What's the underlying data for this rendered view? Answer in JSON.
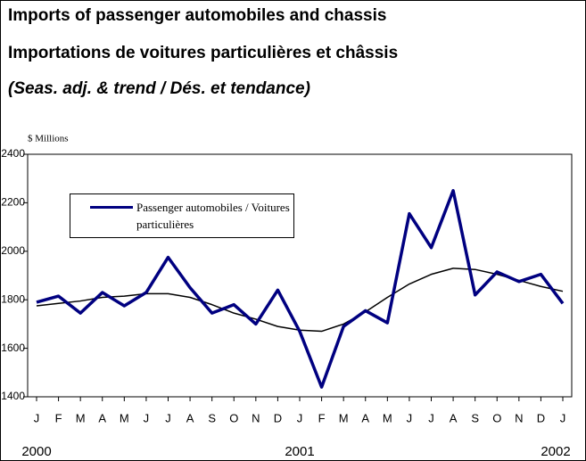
{
  "chart_data": {
    "type": "line",
    "title": "Imports of passenger automobiles and chassis",
    "subtitle": "Importations de voitures particulières et châssis",
    "note": "(Seas. adj. & trend / Dés. et tendance)",
    "y_label": "$ Millions",
    "categories": [
      "J",
      "F",
      "M",
      "A",
      "M",
      "J",
      "J",
      "A",
      "S",
      "O",
      "N",
      "D",
      "J",
      "F",
      "M",
      "A",
      "M",
      "J",
      "J",
      "A",
      "S",
      "O",
      "N",
      "D",
      "J"
    ],
    "years": [
      "2000",
      "2001",
      "2002"
    ],
    "series": [
      {
        "name": "Passenger automobiles / Voitures particulières",
        "color": "#000080",
        "width": 3.5,
        "values": [
          1790,
          1815,
          1745,
          1830,
          1775,
          1830,
          1975,
          1850,
          1745,
          1780,
          1700,
          1840,
          1670,
          1440,
          1690,
          1755,
          1705,
          2155,
          2015,
          2250,
          1820,
          1915,
          1875,
          1905,
          1785
        ]
      },
      {
        "color": "#000000",
        "width": 1.5,
        "values": [
          1775,
          1785,
          1795,
          1810,
          1815,
          1825,
          1825,
          1810,
          1780,
          1745,
          1720,
          1690,
          1675,
          1670,
          1700,
          1750,
          1810,
          1865,
          1905,
          1930,
          1925,
          1905,
          1880,
          1855,
          1835
        ]
      }
    ],
    "ylim": [
      1400,
      2400
    ],
    "yticks": [
      1400,
      1600,
      1800,
      2000,
      2200,
      2400
    ]
  }
}
